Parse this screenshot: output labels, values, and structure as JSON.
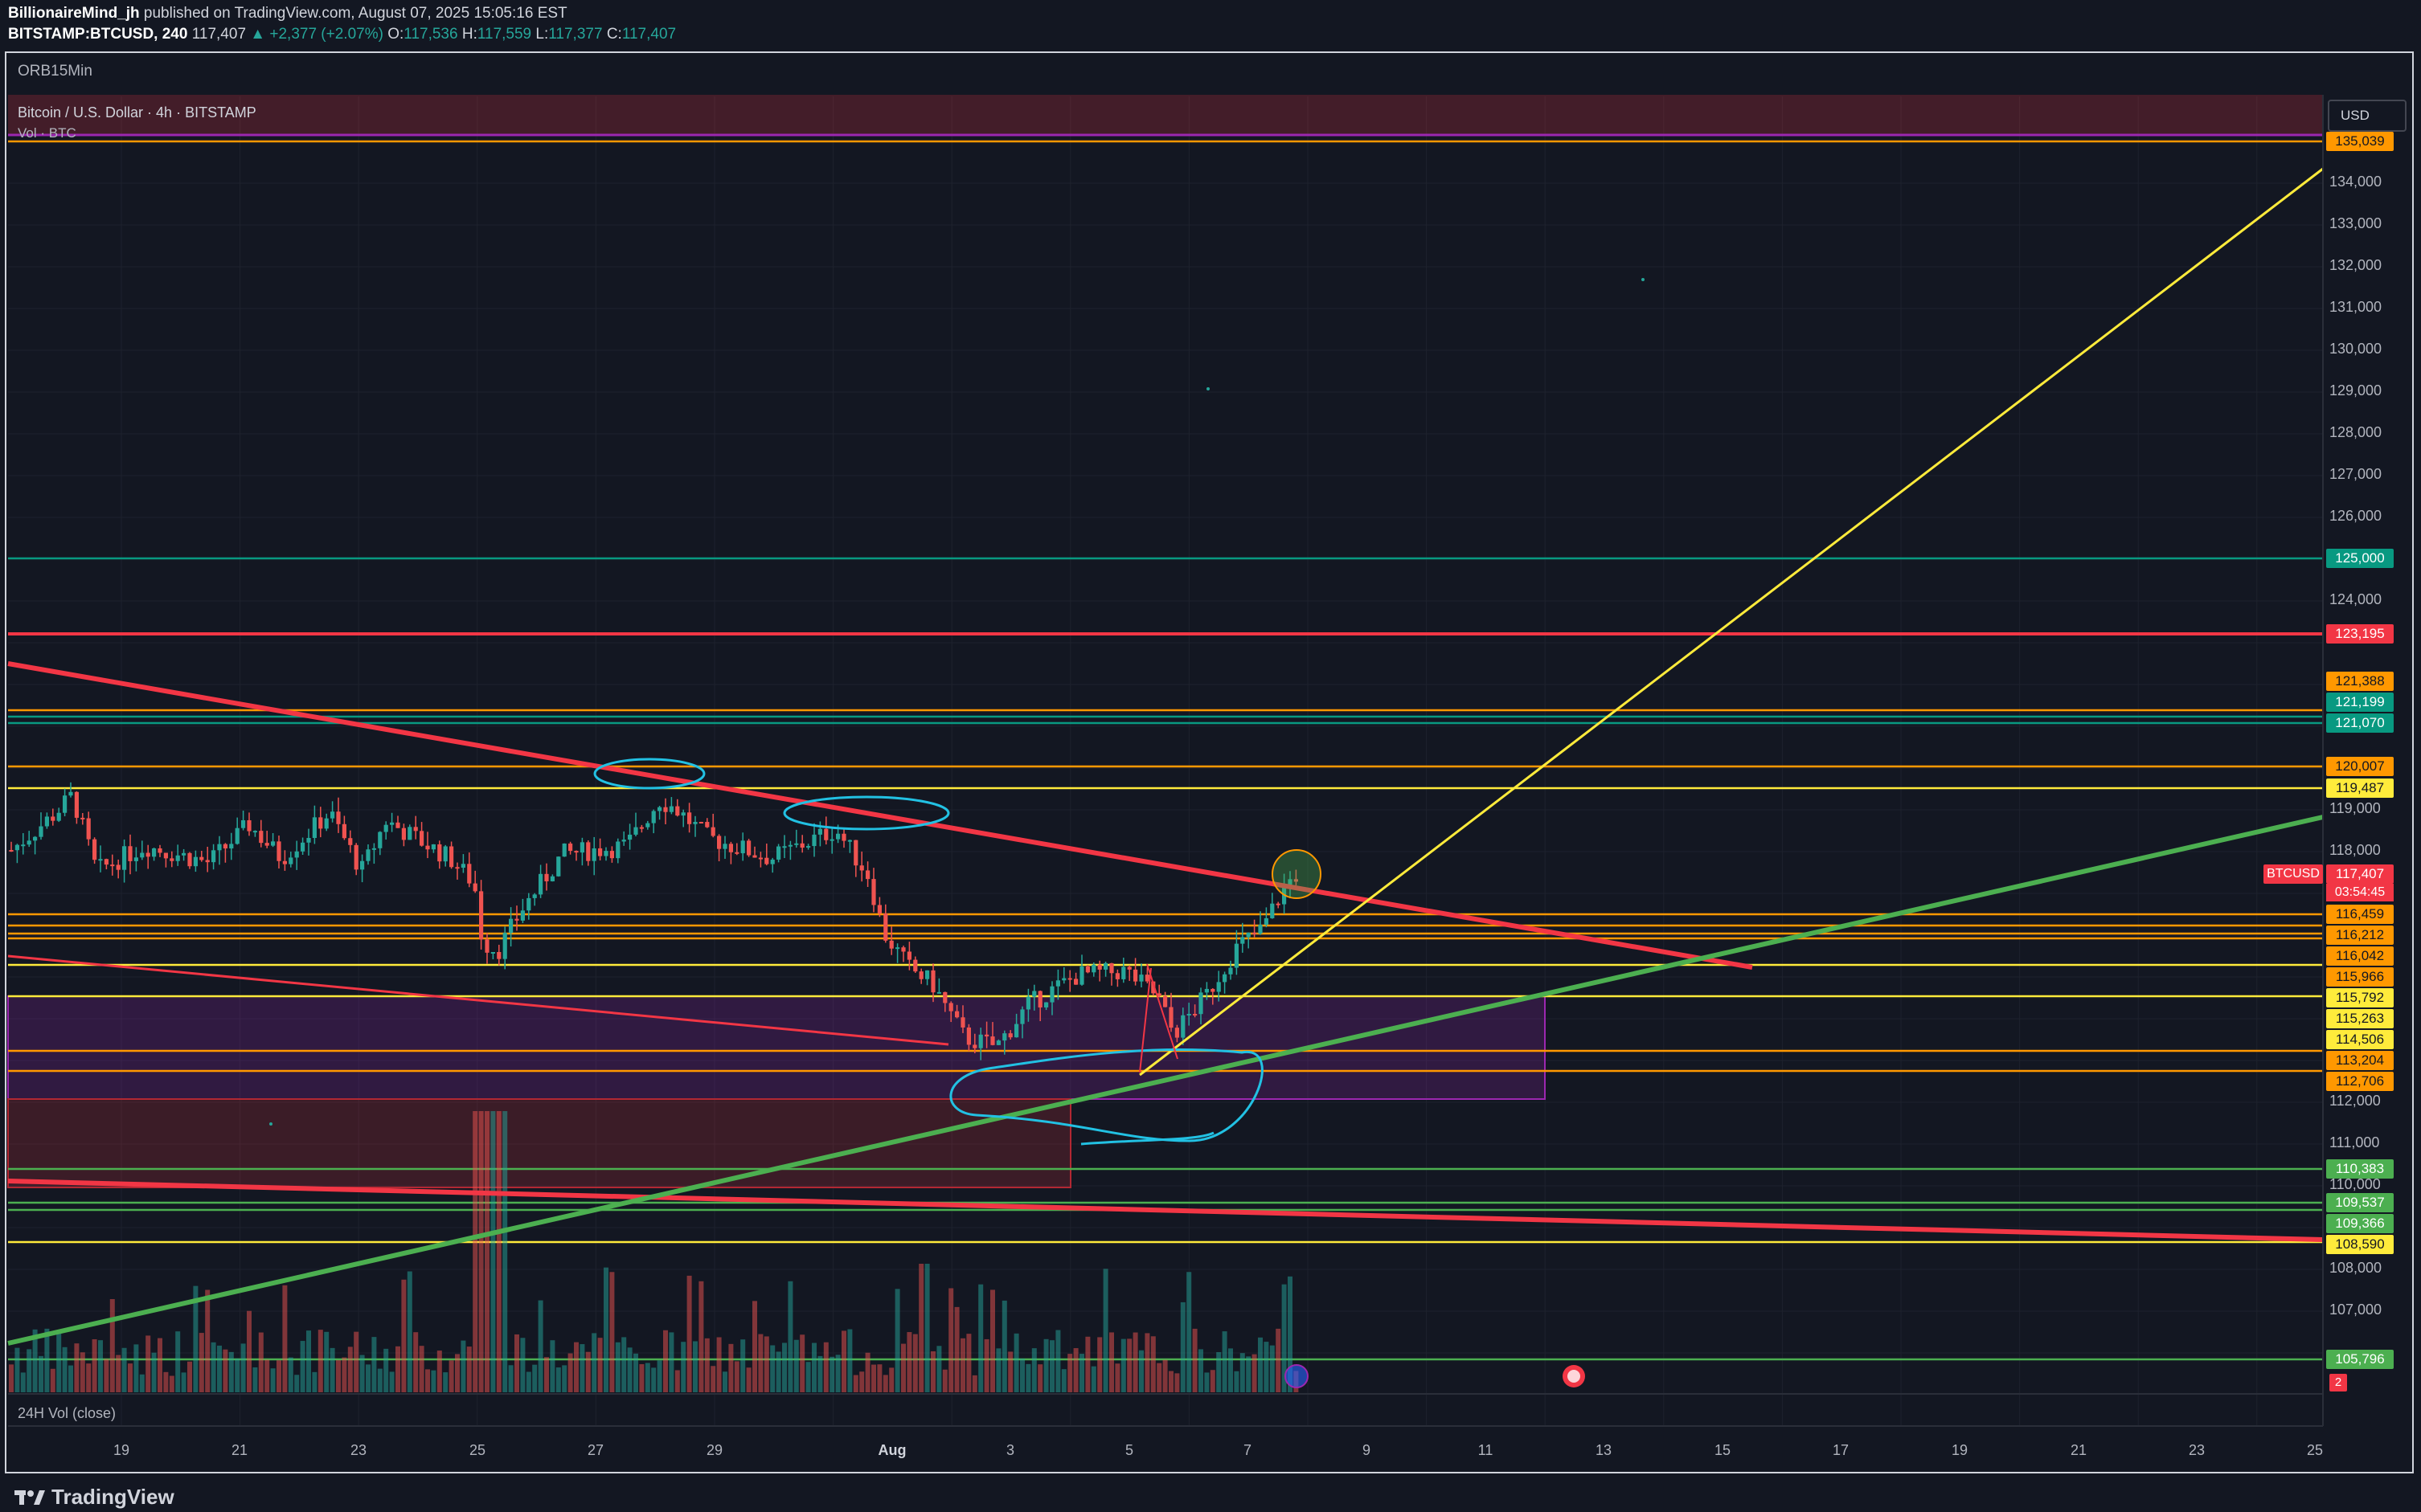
{
  "header": {
    "author": "BillionaireMind_jh",
    "published": "published on TradingView.com, August 07, 2025 15:05:16 EST",
    "symbol": "BITSTAMP:BTCUSD, 240",
    "last": "117,407",
    "change": "▲ +2,377 (+2.07%)",
    "o_label": "O:",
    "o": "117,536",
    "h_label": "H:",
    "h": "117,559",
    "l_label": "L:",
    "l": "117,377",
    "c_label": "C:",
    "c": "117,407"
  },
  "chart": {
    "indicator_top": "ORB15Min",
    "title": "Bitcoin / U.S. Dollar · 4h · BITSTAMP",
    "vol_label": "Vol · BTC",
    "volume_pane_label": "24H Vol (close)",
    "currency": "USD",
    "symbol_tag": "BTCUSD",
    "countdown": "03:54:45",
    "alerts_badge": "2"
  },
  "colors": {
    "background": "#131722",
    "up": "#26a69a",
    "down": "#ef5350",
    "orange": "#ff9800",
    "yellow": "#ffeb3b",
    "green": "#4caf50",
    "red_line": "#f23645",
    "cyan": "#22c1e3",
    "purple_zone": "#9c27b0"
  },
  "y_axis_ticks": [
    "134,000",
    "133,000",
    "132,000",
    "131,000",
    "130,000",
    "129,000",
    "128,000",
    "127,000",
    "126,000",
    "124,000",
    "119,000",
    "118,000",
    "112,000",
    "111,000",
    "110,000",
    "108,000",
    "107,000"
  ],
  "price_tags": [
    {
      "value": "135,039",
      "color": "#ff9800",
      "text": "#131722"
    },
    {
      "value": "125,000",
      "color": "#089981",
      "text": "#ffffff"
    },
    {
      "value": "123,195",
      "color": "#f23645",
      "text": "#ffffff"
    },
    {
      "value": "121,388",
      "color": "#ff9800",
      "text": "#131722"
    },
    {
      "value": "121,199",
      "color": "#089981",
      "text": "#ffffff"
    },
    {
      "value": "121,070",
      "color": "#089981",
      "text": "#ffffff"
    },
    {
      "value": "120,007",
      "color": "#ff9800",
      "text": "#131722"
    },
    {
      "value": "119,487",
      "color": "#ffeb3b",
      "text": "#131722"
    },
    {
      "value": "117,407",
      "color": "#f23645",
      "text": "#ffffff"
    },
    {
      "value": "116,459",
      "color": "#ff9800",
      "text": "#131722"
    },
    {
      "value": "116,212",
      "color": "#ff9800",
      "text": "#131722"
    },
    {
      "value": "116,042",
      "color": "#ff9800",
      "text": "#131722"
    },
    {
      "value": "115,966",
      "color": "#ff9800",
      "text": "#131722"
    },
    {
      "value": "115,792",
      "color": "#ffeb3b",
      "text": "#131722"
    },
    {
      "value": "115,263",
      "color": "#ffeb3b",
      "text": "#131722"
    },
    {
      "value": "114,506",
      "color": "#ffeb3b",
      "text": "#131722"
    },
    {
      "value": "113,204",
      "color": "#ff9800",
      "text": "#131722"
    },
    {
      "value": "112,706",
      "color": "#ff9800",
      "text": "#131722"
    },
    {
      "value": "110,383",
      "color": "#4caf50",
      "text": "#ffffff"
    },
    {
      "value": "109,537",
      "color": "#4caf50",
      "text": "#ffffff"
    },
    {
      "value": "109,366",
      "color": "#4caf50",
      "text": "#ffffff"
    },
    {
      "value": "108,590",
      "color": "#ffeb3b",
      "text": "#131722"
    },
    {
      "value": "105,796",
      "color": "#4caf50",
      "text": "#ffffff"
    }
  ],
  "x_axis_ticks": [
    "19",
    "21",
    "23",
    "25",
    "27",
    "29",
    "Aug",
    "3",
    "5",
    "7",
    "9",
    "11",
    "13",
    "15",
    "17",
    "19",
    "21",
    "23",
    "25"
  ],
  "footer": {
    "brand": "TradingView"
  }
}
